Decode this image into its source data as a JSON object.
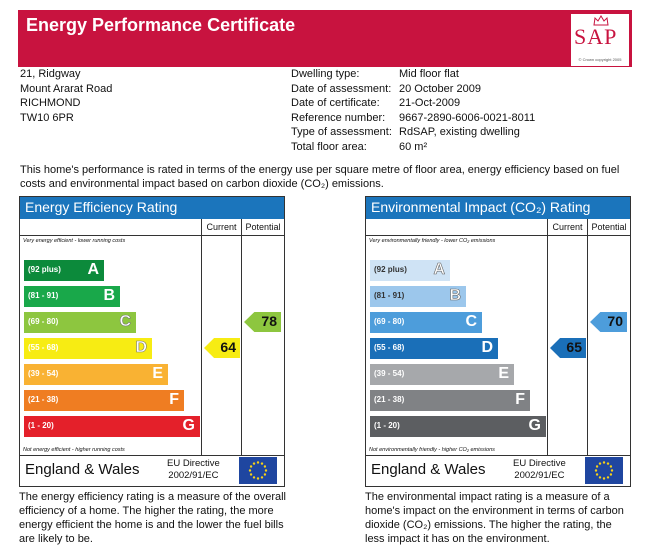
{
  "header": {
    "title": "Energy Performance Certificate",
    "logo_text": "SAP",
    "logo_copyright": "© Crown copyright 2005",
    "background_color": "#c8133f"
  },
  "address": [
    "21, Ridgway",
    "Mount Ararat Road",
    "RICHMOND",
    "TW10 6PR"
  ],
  "details": [
    {
      "label": "Dwelling type:",
      "value": "Mid floor flat"
    },
    {
      "label": "Date of assessment:",
      "value": "20 October 2009"
    },
    {
      "label": "Date of certificate:",
      "value": "21-Oct-2009"
    },
    {
      "label": "Reference number:",
      "value": "9667-2890-6006-0021-8011"
    },
    {
      "label": "Type of assessment:",
      "value": "RdSAP, existing dwelling"
    },
    {
      "label": "Total floor area:",
      "value": "60 m²"
    }
  ],
  "intro": "This home's performance is rated in terms of the energy use per square metre of floor area, energy efficiency based on fuel costs and environmental impact based on carbon dioxide (CO₂) emissions.",
  "energy_panel": {
    "title": "Energy Efficiency Rating",
    "current_label": "Current",
    "potential_label": "Potential",
    "top_note": "Very energy efficient - lower running costs",
    "bottom_note": "Not energy efficient - higher running costs",
    "bands": [
      {
        "range": "(92 plus)",
        "letter": "A",
        "color": "#0c8a3b"
      },
      {
        "range": "(81 - 91)",
        "letter": "B",
        "color": "#19a84a"
      },
      {
        "range": "(69 - 80)",
        "letter": "C",
        "color": "#8dc63f"
      },
      {
        "range": "(55 - 68)",
        "letter": "D",
        "color": "#f7ec13"
      },
      {
        "range": "(39 - 54)",
        "letter": "E",
        "color": "#f9b233"
      },
      {
        "range": "(21 - 38)",
        "letter": "F",
        "color": "#ef7d22"
      },
      {
        "range": "(1 - 20)",
        "letter": "G",
        "color": "#e4202a"
      }
    ],
    "current": {
      "value": "64",
      "color": "#f7ec13"
    },
    "potential": {
      "value": "78",
      "color": "#8dc63f"
    },
    "country": "England & Wales",
    "directive_line1": "EU Directive",
    "directive_line2": "2002/91/EC",
    "caption": "The energy efficiency rating is a measure of the overall efficiency of a home. The higher the rating, the more energy efficient the home is and the lower the fuel bills are likely to be."
  },
  "env_panel": {
    "title": "Environmental Impact (CO₂) Rating",
    "current_label": "Current",
    "potential_label": "Potential",
    "top_note": "Very environmentally friendly - lower CO₂ emissions",
    "bottom_note": "Not environmentally friendly - higher CO₂ emissions",
    "bands": [
      {
        "range": "(92 plus)",
        "letter": "A",
        "color": "#cfe3f5"
      },
      {
        "range": "(81 - 91)",
        "letter": "B",
        "color": "#9cc7ec"
      },
      {
        "range": "(69 - 80)",
        "letter": "C",
        "color": "#4d9ddb"
      },
      {
        "range": "(55 - 68)",
        "letter": "D",
        "color": "#1a6fb8"
      },
      {
        "range": "(39 - 54)",
        "letter": "E",
        "color": "#a6a8ab"
      },
      {
        "range": "(21 - 38)",
        "letter": "F",
        "color": "#808285"
      },
      {
        "range": "(1 - 20)",
        "letter": "G",
        "color": "#5c5e61"
      }
    ],
    "current": {
      "value": "65",
      "color": "#1a6fb8"
    },
    "potential": {
      "value": "70",
      "color": "#4d9ddb"
    },
    "country": "England & Wales",
    "directive_line1": "EU Directive",
    "directive_line2": "2002/91/EC",
    "caption": "The environmental impact rating is a measure of a home's impact on the environment in terms of carbon dioxide (CO₂) emissions. The higher the rating, the less impact it has on the environment."
  }
}
